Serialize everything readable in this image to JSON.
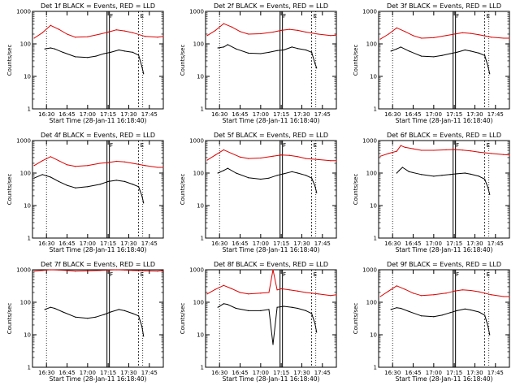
{
  "figure": {
    "background": "#ffffff",
    "events_color": "#000000",
    "lld_color": "#dd0000"
  },
  "chart_data": [
    {
      "type": "line",
      "title": "Det 1f BLACK = Events, RED = LLD",
      "xlabel": "Start Time (28-Jan-11 16:18:40)",
      "ylabel": "Counts/sec",
      "yscale": "log",
      "ylim": [
        1,
        1000
      ],
      "xlim": [
        16.33,
        17.92
      ],
      "xticks": [
        "16:30",
        "16:45",
        "17:00",
        "17:15",
        "17:30",
        "17:45"
      ],
      "yticks": [
        "1",
        "10",
        "100",
        "1000"
      ],
      "markers": [
        {
          "label": "F",
          "x": 17.25
        },
        {
          "label": "E",
          "x": 17.62
        }
      ],
      "dotted_lines": [
        16.5,
        17.67
      ],
      "series": [
        {
          "name": "LLD",
          "color": "#dd0000",
          "x": [
            16.35,
            16.45,
            16.55,
            16.65,
            16.75,
            16.85,
            17.0,
            17.15,
            17.25,
            17.35,
            17.45,
            17.55,
            17.7,
            17.85,
            17.92
          ],
          "y": [
            150,
            220,
            370,
            280,
            200,
            160,
            165,
            200,
            230,
            270,
            250,
            220,
            170,
            160,
            170
          ]
        },
        {
          "name": "Events",
          "color": "#000000",
          "x": [
            16.48,
            16.55,
            16.6,
            16.7,
            16.85,
            17.0,
            17.1,
            17.2,
            17.28,
            17.38,
            17.45,
            17.55,
            17.62,
            17.66,
            17.68
          ],
          "y": [
            70,
            75,
            70,
            55,
            40,
            38,
            42,
            50,
            55,
            65,
            60,
            55,
            45,
            20,
            12
          ]
        }
      ]
    },
    {
      "type": "line",
      "title": "Det 2f BLACK = Events, RED = LLD",
      "xlabel": "Start Time (28-Jan-11 16:18:40)",
      "ylabel": "Counts/sec",
      "yscale": "log",
      "ylim": [
        1,
        1000
      ],
      "xlim": [
        16.33,
        17.92
      ],
      "xticks": [
        "16:30",
        "16:45",
        "17:00",
        "17:15",
        "17:30",
        "17:45"
      ],
      "yticks": [
        "1",
        "10",
        "100",
        "1000"
      ],
      "markers": [
        {
          "label": "F",
          "x": 17.25
        },
        {
          "label": "E",
          "x": 17.62
        }
      ],
      "dotted_lines": [
        16.5,
        17.67
      ],
      "series": [
        {
          "name": "LLD",
          "color": "#dd0000",
          "x": [
            16.35,
            16.45,
            16.55,
            16.65,
            16.75,
            16.85,
            17.0,
            17.15,
            17.25,
            17.35,
            17.45,
            17.55,
            17.7,
            17.85,
            17.92
          ],
          "y": [
            180,
            260,
            420,
            330,
            240,
            200,
            205,
            230,
            260,
            280,
            260,
            230,
            200,
            180,
            185
          ]
        },
        {
          "name": "Events",
          "color": "#000000",
          "x": [
            16.48,
            16.55,
            16.6,
            16.7,
            16.85,
            17.0,
            17.1,
            17.2,
            17.28,
            17.38,
            17.45,
            17.55,
            17.62,
            17.66,
            17.68
          ],
          "y": [
            75,
            80,
            95,
            70,
            52,
            50,
            55,
            62,
            65,
            80,
            72,
            65,
            55,
            25,
            18
          ]
        }
      ]
    },
    {
      "type": "line",
      "title": "Det 3f BLACK = Events, RED = LLD",
      "xlabel": "Start Time (28-Jan-11 16:18:40)",
      "ylabel": "Counts/sec",
      "yscale": "log",
      "ylim": [
        1,
        1000
      ],
      "xlim": [
        16.33,
        17.92
      ],
      "xticks": [
        "16:30",
        "16:45",
        "17:00",
        "17:15",
        "17:30",
        "17:45"
      ],
      "yticks": [
        "1",
        "10",
        "100",
        "1000"
      ],
      "markers": [
        {
          "label": "F",
          "x": 17.25
        },
        {
          "label": "E",
          "x": 17.62
        }
      ],
      "dotted_lines": [
        16.5,
        17.67
      ],
      "series": [
        {
          "name": "LLD",
          "color": "#dd0000",
          "x": [
            16.35,
            16.45,
            16.55,
            16.65,
            16.75,
            16.85,
            17.0,
            17.15,
            17.25,
            17.35,
            17.45,
            17.55,
            17.7,
            17.85,
            17.92
          ],
          "y": [
            140,
            200,
            310,
            240,
            180,
            150,
            155,
            180,
            200,
            220,
            210,
            190,
            160,
            150,
            150
          ]
        },
        {
          "name": "Events",
          "color": "#000000",
          "x": [
            16.48,
            16.55,
            16.6,
            16.7,
            16.85,
            17.0,
            17.1,
            17.2,
            17.28,
            17.38,
            17.45,
            17.55,
            17.62,
            17.66,
            17.68
          ],
          "y": [
            60,
            70,
            80,
            60,
            42,
            40,
            44,
            50,
            55,
            65,
            60,
            52,
            44,
            20,
            12
          ]
        }
      ]
    },
    {
      "type": "line",
      "title": "Det 4f BLACK = Events, RED = LLD",
      "xlabel": "Start Time (28-Jan-11 16:18:40)",
      "ylabel": "Counts/sec",
      "yscale": "log",
      "ylim": [
        1,
        1000
      ],
      "xlim": [
        16.33,
        17.92
      ],
      "xticks": [
        "16:30",
        "16:45",
        "17:00",
        "17:15",
        "17:30",
        "17:45"
      ],
      "yticks": [
        "1",
        "10",
        "100",
        "1000"
      ],
      "markers": [
        {
          "label": "F",
          "x": 17.25
        },
        {
          "label": "E",
          "x": 17.62
        }
      ],
      "dotted_lines": [
        16.5,
        17.67
      ],
      "series": [
        {
          "name": "LLD",
          "color": "#dd0000",
          "x": [
            16.35,
            16.45,
            16.55,
            16.65,
            16.75,
            16.85,
            17.0,
            17.15,
            17.25,
            17.35,
            17.45,
            17.55,
            17.7,
            17.85,
            17.92
          ],
          "y": [
            170,
            240,
            320,
            240,
            180,
            160,
            170,
            200,
            210,
            230,
            220,
            200,
            170,
            150,
            150
          ]
        },
        {
          "name": "Events",
          "color": "#000000",
          "x": [
            16.35,
            16.45,
            16.55,
            16.65,
            16.75,
            16.85,
            17.0,
            17.15,
            17.25,
            17.35,
            17.45,
            17.55,
            17.62,
            17.66,
            17.68
          ],
          "y": [
            70,
            90,
            75,
            55,
            42,
            35,
            38,
            45,
            55,
            60,
            55,
            45,
            38,
            20,
            12
          ]
        }
      ]
    },
    {
      "type": "line",
      "title": "Det 5f BLACK = Events, RED = LLD",
      "xlabel": "Start Time (28-Jan-11 16:18:40)",
      "ylabel": "Counts/sec",
      "yscale": "log",
      "ylim": [
        1,
        1000
      ],
      "xlim": [
        16.33,
        17.92
      ],
      "xticks": [
        "16:30",
        "16:45",
        "17:00",
        "17:15",
        "17:30",
        "17:45"
      ],
      "yticks": [
        "1",
        "10",
        "100",
        "1000"
      ],
      "markers": [
        {
          "label": "F",
          "x": 17.25
        },
        {
          "label": "E",
          "x": 17.62
        }
      ],
      "dotted_lines": [
        16.5,
        17.67
      ],
      "series": [
        {
          "name": "LLD",
          "color": "#dd0000",
          "x": [
            16.35,
            16.45,
            16.55,
            16.65,
            16.75,
            16.85,
            17.0,
            17.15,
            17.25,
            17.35,
            17.45,
            17.55,
            17.7,
            17.85,
            17.92
          ],
          "y": [
            250,
            360,
            520,
            400,
            310,
            280,
            290,
            330,
            360,
            350,
            320,
            280,
            260,
            240,
            240
          ]
        },
        {
          "name": "Events",
          "color": "#000000",
          "x": [
            16.48,
            16.55,
            16.6,
            16.7,
            16.85,
            17.0,
            17.1,
            17.2,
            17.28,
            17.38,
            17.45,
            17.55,
            17.62,
            17.66,
            17.68
          ],
          "y": [
            100,
            120,
            140,
            100,
            72,
            65,
            70,
            85,
            95,
            110,
            100,
            85,
            70,
            40,
            25
          ]
        }
      ]
    },
    {
      "type": "line",
      "title": "Det 6f BLACK = Events, RED = LLD",
      "xlabel": "Start Time (28-Jan-11 16:18:40)",
      "ylabel": "Counts/sec",
      "yscale": "log",
      "ylim": [
        1,
        1000
      ],
      "xlim": [
        16.33,
        17.92
      ],
      "xticks": [
        "16:30",
        "16:45",
        "17:00",
        "17:15",
        "17:30",
        "17:45"
      ],
      "yticks": [
        "1",
        "10",
        "100",
        "1000"
      ],
      "markers": [
        {
          "label": "F",
          "x": 17.25
        },
        {
          "label": "E",
          "x": 17.62
        }
      ],
      "dotted_lines": [
        16.5,
        17.67
      ],
      "series": [
        {
          "name": "LLD",
          "color": "#dd0000",
          "x": [
            16.35,
            16.45,
            16.55,
            16.6,
            16.65,
            16.75,
            16.85,
            17.0,
            17.15,
            17.25,
            17.35,
            17.45,
            17.55,
            17.7,
            17.85,
            17.92
          ],
          "y": [
            330,
            400,
            470,
            700,
            620,
            560,
            500,
            500,
            520,
            530,
            510,
            480,
            440,
            400,
            370,
            360
          ]
        },
        {
          "name": "Events",
          "color": "#000000",
          "x": [
            16.55,
            16.58,
            16.62,
            16.7,
            16.85,
            17.0,
            17.1,
            17.2,
            17.28,
            17.38,
            17.45,
            17.55,
            17.62,
            17.66,
            17.68
          ],
          "y": [
            100,
            120,
            150,
            110,
            90,
            80,
            85,
            90,
            95,
            100,
            92,
            80,
            65,
            35,
            22
          ]
        }
      ]
    },
    {
      "type": "line",
      "title": "Det 7f BLACK = Events, RED = LLD",
      "xlabel": "Start Time (28-Jan-11 16:18:40)",
      "ylabel": "Counts/sec",
      "yscale": "log",
      "ylim": [
        1,
        1000
      ],
      "xlim": [
        16.33,
        17.92
      ],
      "xticks": [
        "16:30",
        "16:45",
        "17:00",
        "17:15",
        "17:30",
        "17:45"
      ],
      "yticks": [
        "1",
        "10",
        "100",
        "1000"
      ],
      "markers": [
        {
          "label": "F",
          "x": 17.25
        },
        {
          "label": "E",
          "x": 17.62
        }
      ],
      "dotted_lines": [
        16.5,
        17.67
      ],
      "series": [
        {
          "name": "LLD",
          "color": "#dd0000",
          "x": [
            16.35,
            16.45,
            16.55,
            16.65,
            16.75,
            16.85,
            17.0,
            17.15,
            17.25,
            17.35,
            17.45,
            17.55,
            17.7,
            17.85,
            17.92
          ],
          "y": [
            900,
            950,
            1000,
            980,
            950,
            900,
            920,
            950,
            980,
            1000,
            980,
            950,
            920,
            900,
            950
          ]
        },
        {
          "name": "Events",
          "color": "#000000",
          "x": [
            16.48,
            16.55,
            16.6,
            16.7,
            16.85,
            17.0,
            17.1,
            17.2,
            17.28,
            17.38,
            17.45,
            17.55,
            17.62,
            17.66,
            17.68
          ],
          "y": [
            60,
            70,
            65,
            50,
            35,
            32,
            35,
            42,
            50,
            60,
            55,
            45,
            38,
            18,
            9
          ]
        }
      ]
    },
    {
      "type": "line",
      "title": "Det 8f BLACK = Events, RED = LLD",
      "xlabel": "Start Time (28-Jan-11 16:18:40)",
      "ylabel": "Counts/sec",
      "yscale": "log",
      "ylim": [
        1,
        1000
      ],
      "xlim": [
        16.33,
        17.92
      ],
      "xticks": [
        "16:30",
        "16:45",
        "17:00",
        "17:15",
        "17:30",
        "17:45"
      ],
      "yticks": [
        "1",
        "10",
        "100",
        "1000"
      ],
      "markers": [
        {
          "label": "F",
          "x": 17.25
        },
        {
          "label": "E",
          "x": 17.62
        }
      ],
      "dotted_lines": [
        16.5,
        17.67
      ],
      "series": [
        {
          "name": "LLD",
          "color": "#dd0000",
          "x": [
            16.35,
            16.45,
            16.55,
            16.65,
            16.75,
            16.85,
            17.0,
            17.1,
            17.15,
            17.2,
            17.25,
            17.35,
            17.45,
            17.55,
            17.7,
            17.85,
            17.92
          ],
          "y": [
            180,
            250,
            330,
            260,
            200,
            180,
            190,
            200,
            1000,
            240,
            260,
            240,
            220,
            200,
            180,
            160,
            170
          ]
        },
        {
          "name": "Events",
          "color": "#000000",
          "x": [
            16.48,
            16.55,
            16.6,
            16.7,
            16.85,
            17.0,
            17.1,
            17.15,
            17.2,
            17.28,
            17.38,
            17.45,
            17.55,
            17.62,
            17.66,
            17.68
          ],
          "y": [
            70,
            90,
            85,
            65,
            55,
            55,
            60,
            5,
            70,
            75,
            70,
            65,
            55,
            45,
            22,
            12
          ]
        }
      ]
    },
    {
      "type": "line",
      "title": "Det 9f BLACK = Events, RED = LLD",
      "xlabel": "Start Time (28-Jan-11 16:18:40)",
      "ylabel": "Counts/sec",
      "yscale": "log",
      "ylim": [
        1,
        1000
      ],
      "xlim": [
        16.33,
        17.92
      ],
      "xticks": [
        "16:30",
        "16:45",
        "17:00",
        "17:15",
        "17:30",
        "17:45"
      ],
      "yticks": [
        "1",
        "10",
        "100",
        "1000"
      ],
      "markers": [
        {
          "label": "F",
          "x": 17.25
        },
        {
          "label": "E",
          "x": 17.62
        }
      ],
      "dotted_lines": [
        16.5,
        17.67
      ],
      "series": [
        {
          "name": "LLD",
          "color": "#dd0000",
          "x": [
            16.35,
            16.45,
            16.55,
            16.65,
            16.75,
            16.85,
            17.0,
            17.15,
            17.25,
            17.35,
            17.45,
            17.55,
            17.7,
            17.85,
            17.92
          ],
          "y": [
            150,
            220,
            320,
            250,
            190,
            160,
            170,
            190,
            220,
            240,
            230,
            210,
            170,
            150,
            150
          ]
        },
        {
          "name": "Events",
          "color": "#000000",
          "x": [
            16.48,
            16.55,
            16.6,
            16.7,
            16.85,
            17.0,
            17.1,
            17.2,
            17.28,
            17.38,
            17.45,
            17.55,
            17.62,
            17.66,
            17.68
          ],
          "y": [
            60,
            68,
            65,
            52,
            38,
            36,
            40,
            48,
            55,
            62,
            58,
            50,
            40,
            18,
            10
          ]
        }
      ]
    }
  ]
}
